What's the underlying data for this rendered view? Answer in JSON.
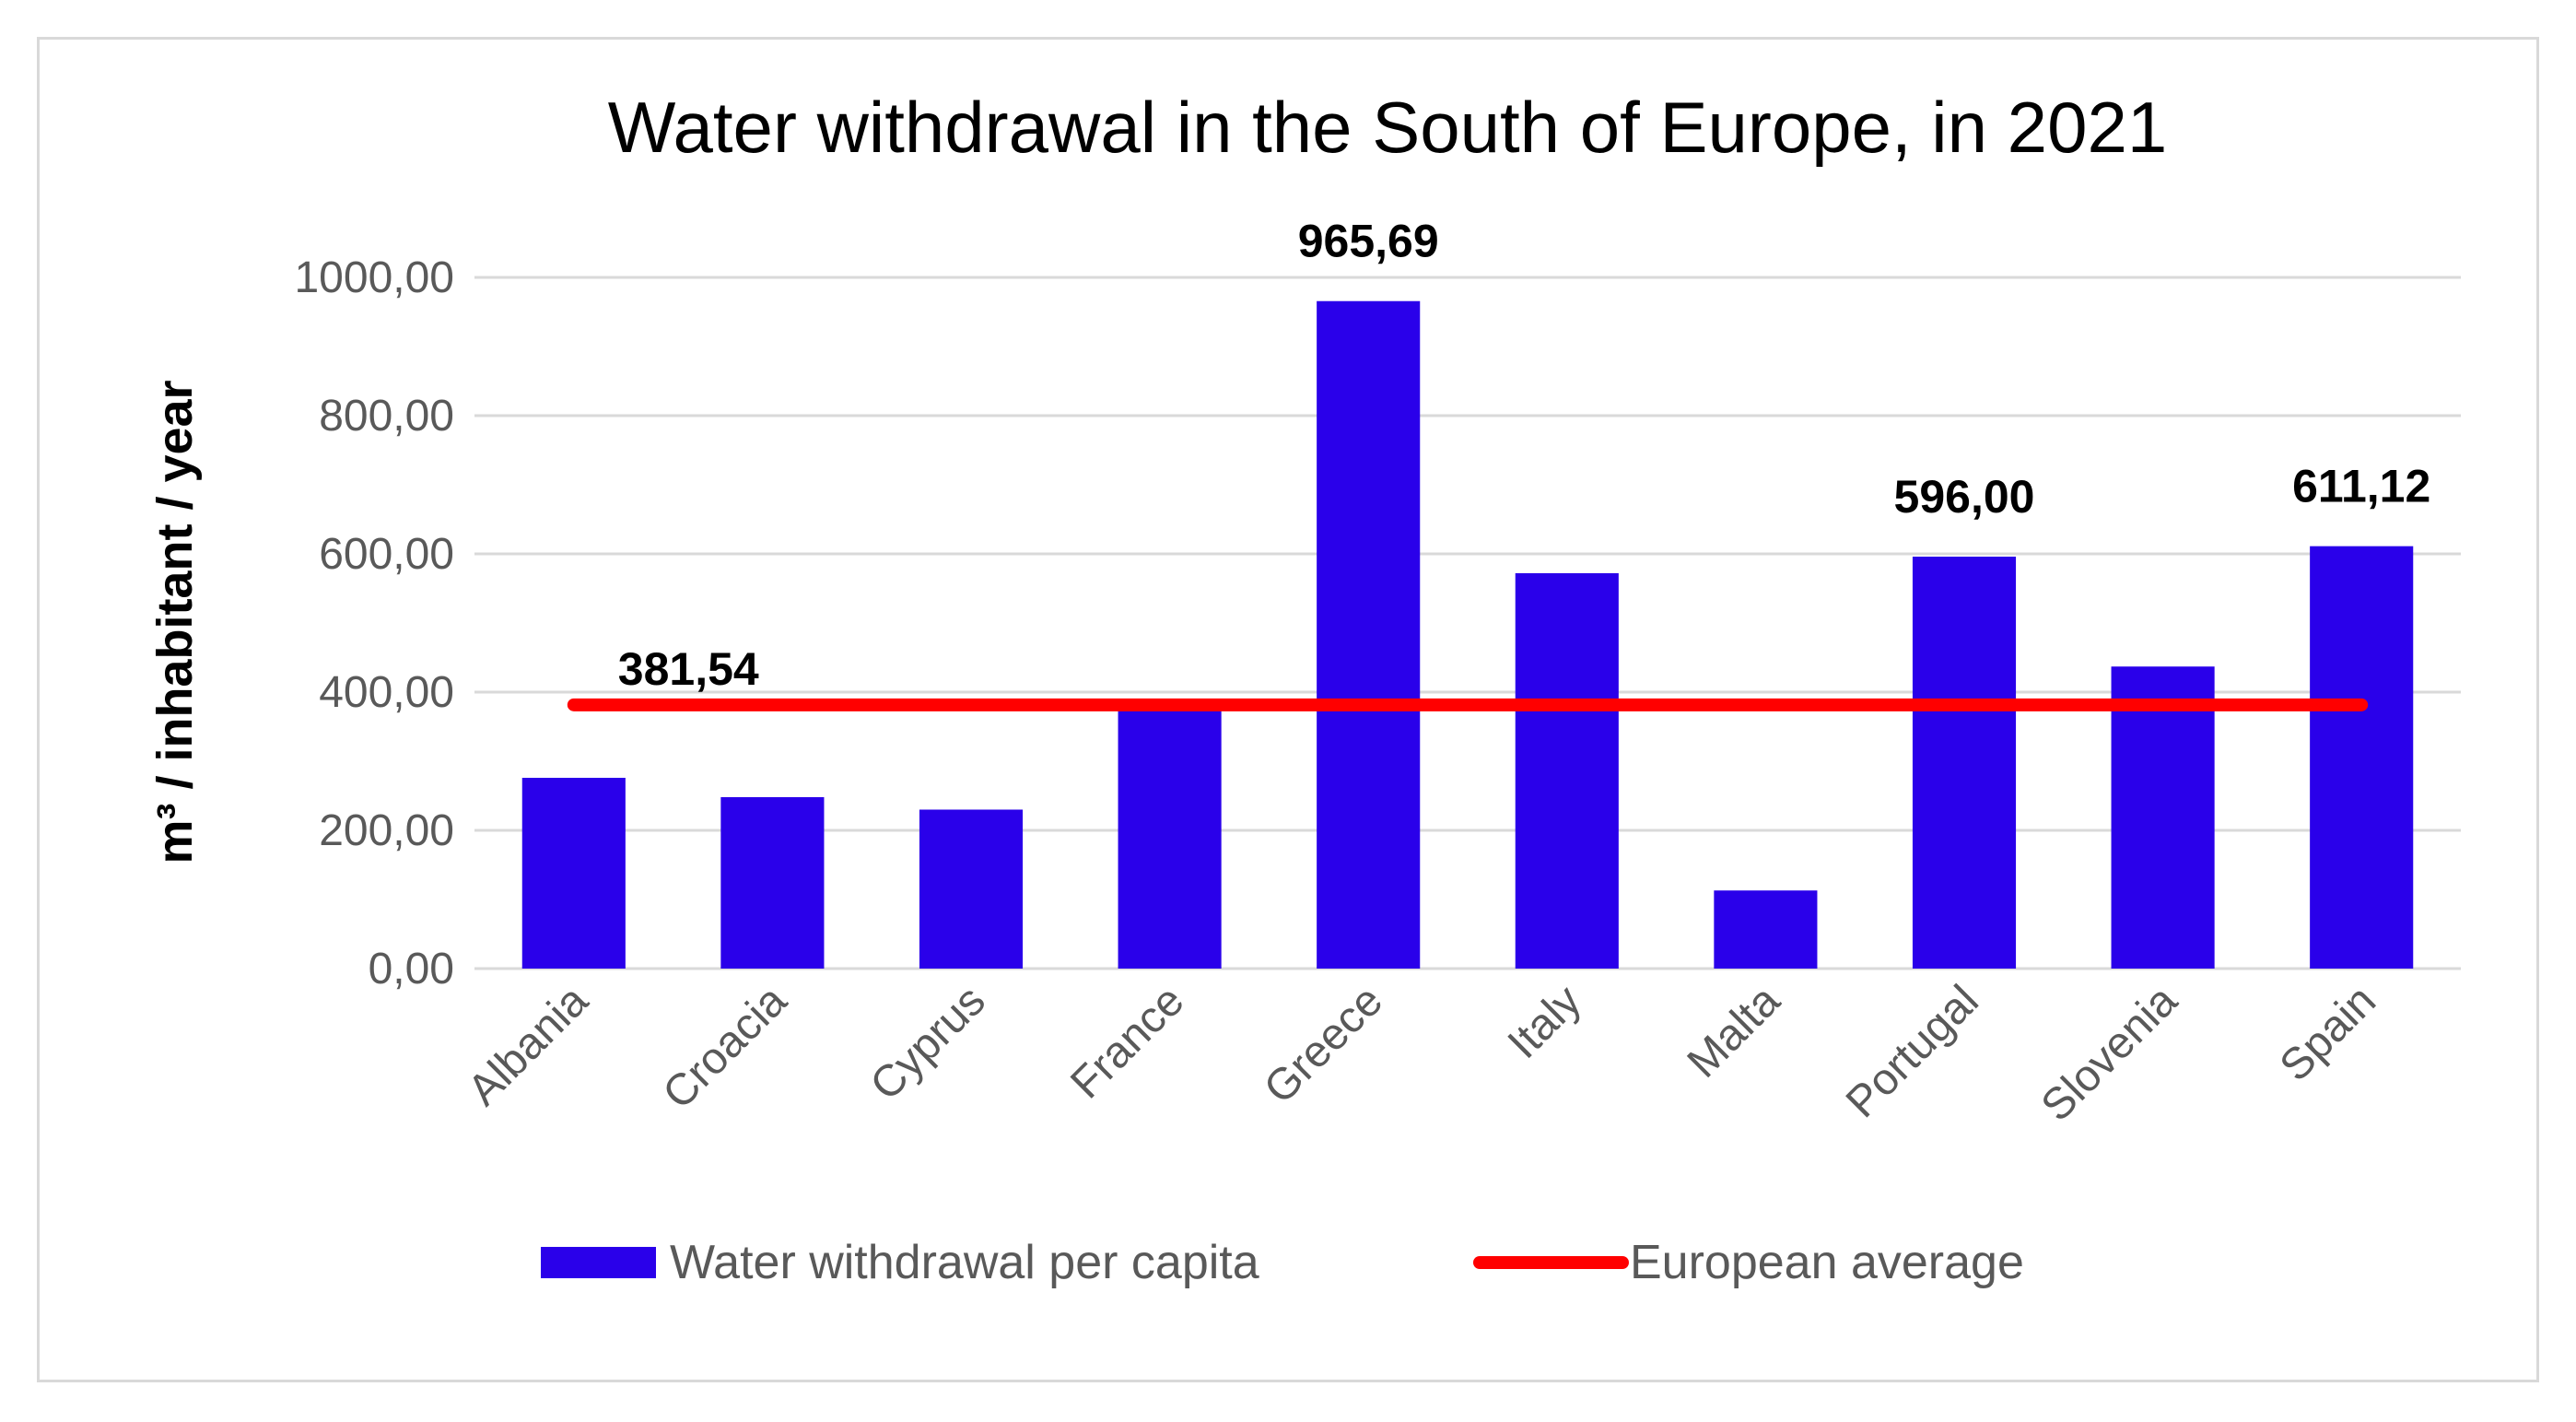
{
  "chart_data": {
    "type": "bar",
    "title": "Water withdrawal in the South of Europe, in 2021",
    "xlabel": "",
    "ylabel": "m³ / inhabitant / year",
    "ylim": [
      0,
      1000
    ],
    "yticks": [
      "0,00",
      "200,00",
      "400,00",
      "600,00",
      "800,00",
      "1000,00"
    ],
    "categories": [
      "Albania",
      "Croacia",
      "Cyprus",
      "France",
      "Greece",
      "Italy",
      "Malta",
      "Portugal",
      "Slovenia",
      "Spain"
    ],
    "series": [
      {
        "name": "Water withdrawal per capita",
        "kind": "bar",
        "color": "#2a00ea",
        "values": [
          276,
          248,
          230,
          378,
          965.69,
          572,
          113,
          596.0,
          437,
          611.12
        ]
      },
      {
        "name": "European average",
        "kind": "line",
        "color": "#ff0000",
        "values": [
          381.54,
          381.54,
          381.54,
          381.54,
          381.54,
          381.54,
          381.54,
          381.54,
          381.54,
          381.54
        ]
      }
    ],
    "data_labels": [
      {
        "category": "Greece",
        "text": "965,69"
      },
      {
        "category": "Portugal",
        "text": "596,00"
      },
      {
        "category": "Spain",
        "text": "611,12"
      },
      {
        "category": "Albania",
        "series": "European average",
        "text": "381,54"
      }
    ],
    "grid": true,
    "legend": "bottom"
  }
}
